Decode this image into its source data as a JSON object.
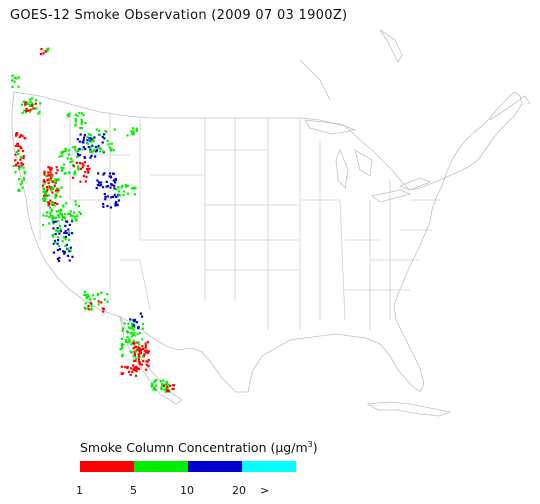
{
  "title": "GOES-12 Smoke Observation (2009 07 03  1900Z)",
  "legend": {
    "title_prefix": "Smoke Column Concentration (",
    "title_unit": "μg/m",
    "title_sup": "3",
    "title_suffix": ")",
    "colors": [
      "#ff0000",
      "#00ee00",
      "#0000cc",
      "#00ffff"
    ],
    "ticks": [
      "1",
      "5",
      "10",
      "20",
      ">"
    ]
  },
  "colors": {
    "state_lines": "#c8c8c8",
    "coast_lines": "#b4b4b4"
  }
}
